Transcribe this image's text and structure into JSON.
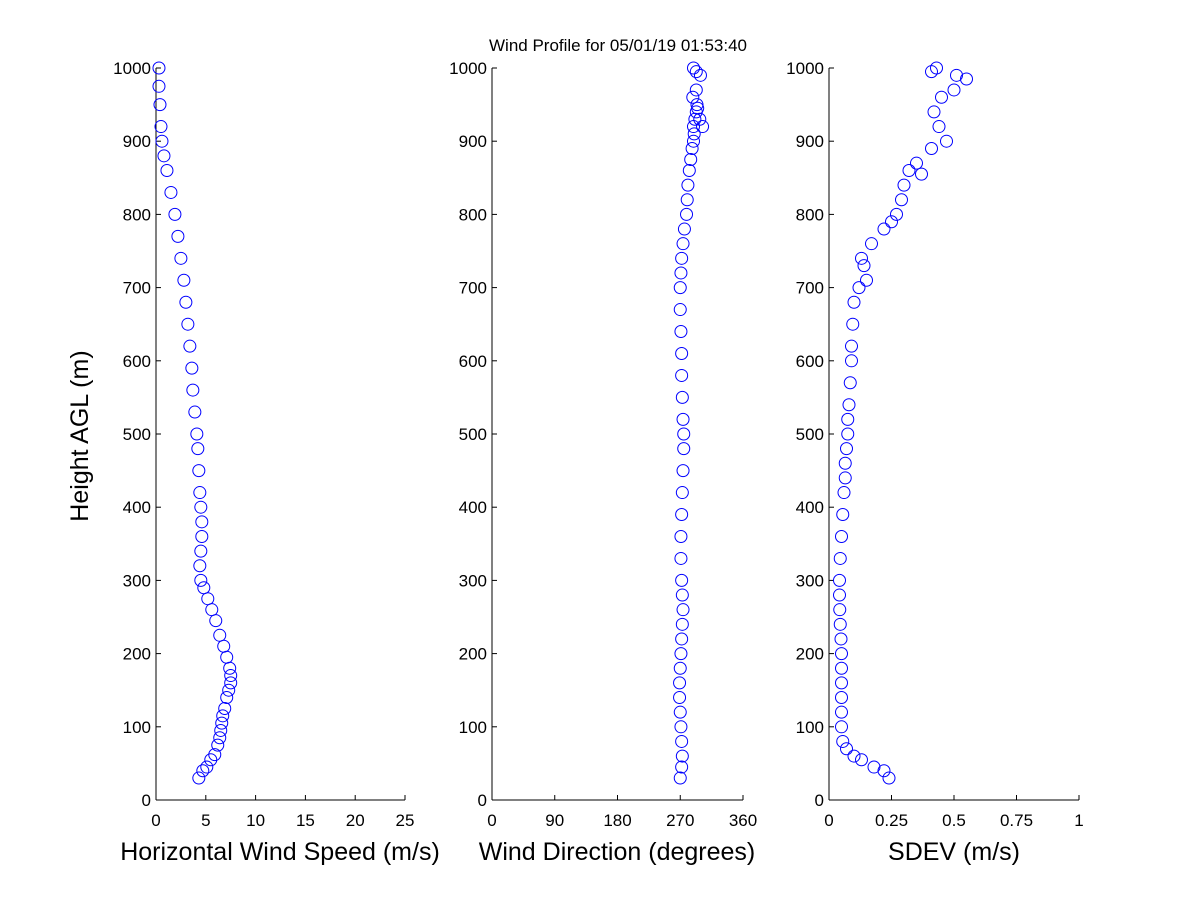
{
  "figure_title": "Wind Profile for  05/01/19 01:53:40",
  "chart_data": [
    {
      "type": "scatter",
      "title": "",
      "xlabel": "Horizontal Wind Speed (m/s)",
      "ylabel": "Height AGL (m)",
      "xlim": [
        0,
        25
      ],
      "ylim": [
        0,
        1000
      ],
      "xticks": [
        0,
        5,
        10,
        15,
        20,
        25
      ],
      "yticks": [
        0,
        100,
        200,
        300,
        400,
        500,
        600,
        700,
        800,
        900,
        1000
      ],
      "grid": false,
      "marker": "circle",
      "marker_color": "#0000ff",
      "series": [
        {
          "x": [
            4.3,
            4.7,
            5.1,
            5.5,
            5.9,
            6.2,
            6.4,
            6.5,
            6.6,
            6.7,
            6.9,
            7.1,
            7.3,
            7.5,
            7.5,
            7.4,
            7.1,
            6.8,
            6.4,
            6.0,
            5.6,
            5.2,
            4.8,
            4.5,
            4.4,
            4.5,
            4.6,
            4.6,
            4.5,
            4.4,
            4.3,
            4.2,
            4.1,
            3.9,
            3.7,
            3.6,
            3.4,
            3.2,
            3.0,
            2.8,
            2.5,
            2.2,
            1.9,
            1.5,
            1.1,
            0.8,
            0.6,
            0.5,
            0.4,
            0.3,
            0.3
          ],
          "y": [
            30,
            40,
            45,
            55,
            62,
            75,
            85,
            95,
            105,
            115,
            125,
            140,
            150,
            160,
            170,
            180,
            195,
            210,
            225,
            245,
            260,
            275,
            290,
            300,
            320,
            340,
            360,
            380,
            400,
            420,
            450,
            480,
            500,
            530,
            560,
            590,
            620,
            650,
            680,
            710,
            740,
            770,
            800,
            830,
            860,
            880,
            900,
            920,
            950,
            975,
            1000
          ]
        }
      ]
    },
    {
      "type": "scatter",
      "title": "",
      "xlabel": "Wind Direction (degrees)",
      "ylabel": "",
      "xlim": [
        0,
        360
      ],
      "ylim": [
        0,
        1000
      ],
      "xticks": [
        0,
        90,
        180,
        270,
        360
      ],
      "yticks": [
        0,
        100,
        200,
        300,
        400,
        500,
        600,
        700,
        800,
        900,
        1000
      ],
      "grid": false,
      "marker": "circle",
      "marker_color": "#0000ff",
      "series": [
        {
          "x": [
            270,
            272,
            273,
            272,
            271,
            270,
            269,
            269,
            270,
            271,
            272,
            273,
            274,
            273,
            272,
            271,
            271,
            272,
            273,
            274,
            275,
            275,
            274,
            273,
            272,
            272,
            271,
            270,
            270,
            271,
            272,
            274,
            276,
            279,
            280,
            281,
            283,
            285,
            287,
            289,
            290,
            289,
            291,
            293,
            295,
            298,
            302,
            294,
            288,
            293,
            299,
            289,
            293
          ],
          "y": [
            30,
            45,
            60,
            80,
            100,
            120,
            140,
            160,
            180,
            200,
            220,
            240,
            260,
            280,
            300,
            330,
            360,
            390,
            420,
            450,
            480,
            500,
            520,
            550,
            580,
            610,
            640,
            670,
            700,
            720,
            740,
            760,
            780,
            800,
            820,
            840,
            860,
            875,
            890,
            900,
            910,
            920,
            930,
            940,
            945,
            930,
            920,
            950,
            960,
            970,
            990,
            1000,
            995
          ]
        }
      ]
    },
    {
      "type": "scatter",
      "title": "",
      "xlabel": "SDEV  (m/s)",
      "ylabel": "",
      "xlim": [
        0,
        1
      ],
      "ylim": [
        0,
        1000
      ],
      "xticks": [
        "0",
        "0.25",
        "0.5",
        "0.75",
        "1"
      ],
      "yticks": [
        0,
        100,
        200,
        300,
        400,
        500,
        600,
        700,
        800,
        900,
        1000
      ],
      "grid": false,
      "marker": "circle",
      "marker_color": "#0000ff",
      "series": [
        {
          "x": [
            0.24,
            0.22,
            0.18,
            0.13,
            0.1,
            0.07,
            0.055,
            0.05,
            0.05,
            0.05,
            0.05,
            0.05,
            0.05,
            0.048,
            0.045,
            0.043,
            0.042,
            0.042,
            0.045,
            0.05,
            0.055,
            0.06,
            0.065,
            0.065,
            0.07,
            0.075,
            0.075,
            0.08,
            0.085,
            0.09,
            0.09,
            0.095,
            0.1,
            0.12,
            0.15,
            0.14,
            0.13,
            0.17,
            0.22,
            0.25,
            0.27,
            0.29,
            0.3,
            0.32,
            0.37,
            0.35,
            0.41,
            0.44,
            0.47,
            0.42,
            0.45,
            0.5,
            0.55,
            0.51,
            0.43,
            0.41
          ],
          "y": [
            30,
            40,
            45,
            55,
            60,
            70,
            80,
            100,
            120,
            140,
            160,
            180,
            200,
            220,
            240,
            260,
            280,
            300,
            330,
            360,
            390,
            420,
            440,
            460,
            480,
            500,
            520,
            540,
            570,
            600,
            620,
            650,
            680,
            700,
            710,
            730,
            740,
            760,
            780,
            790,
            800,
            820,
            840,
            860,
            855,
            870,
            890,
            920,
            900,
            940,
            960,
            970,
            985,
            990,
            1000,
            995
          ]
        }
      ]
    }
  ]
}
